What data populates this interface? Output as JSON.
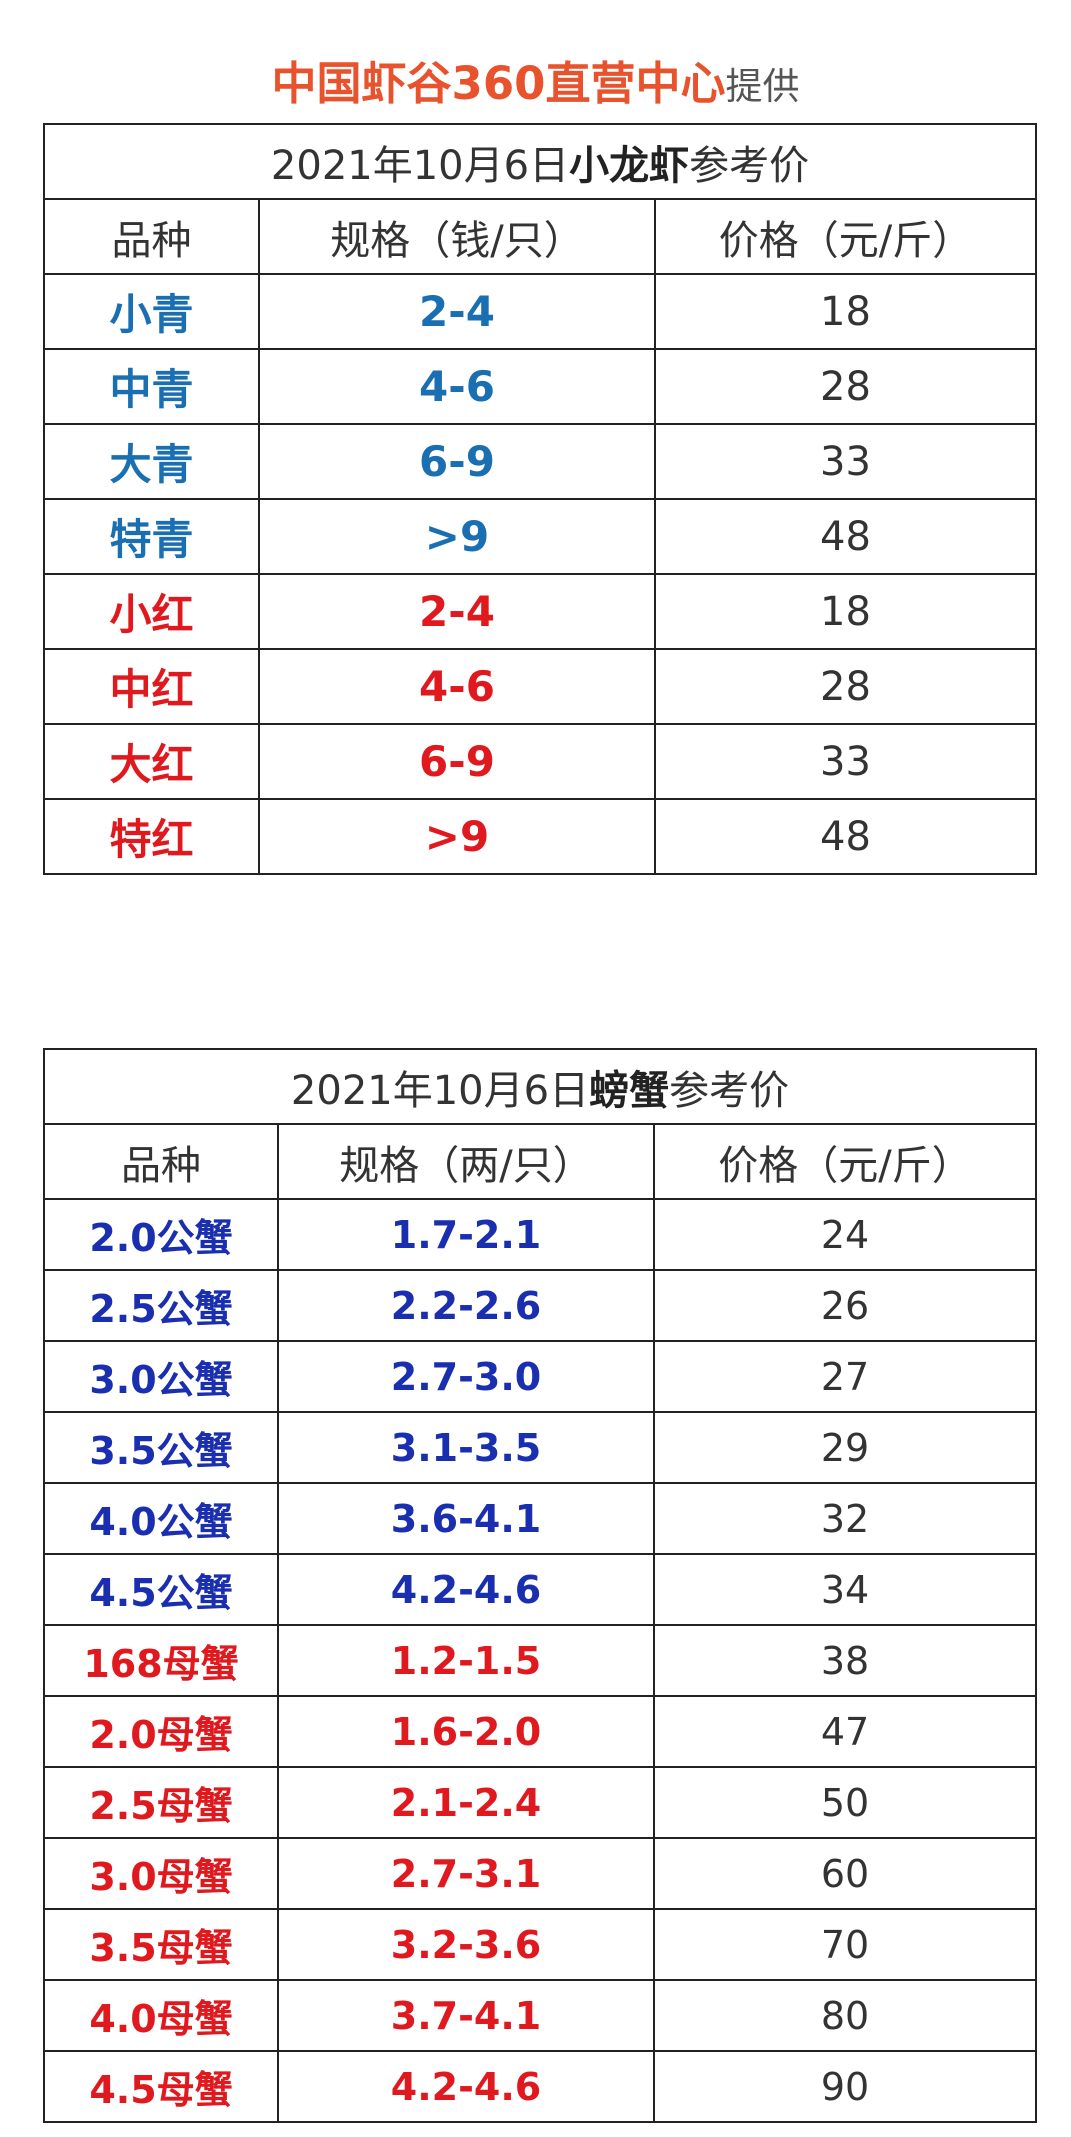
{
  "header": {
    "brand": "中国虾谷360直营中心",
    "provided": "提供"
  },
  "colors": {
    "brand_orange": "#e8522c",
    "crayfish_qing_blue": "#1a6fb3",
    "crab_male_blue": "#1a2eb0",
    "red": "#e0191f"
  },
  "crayfish_table": {
    "title_prefix": "2021年10月6日",
    "title_strong": "小龙虾",
    "title_suffix": "参考价",
    "headers": [
      "品种",
      "规格（钱/只）",
      "价格（元/斤）"
    ],
    "rows": [
      {
        "variety": "小青",
        "spec": "2-4",
        "price": "18",
        "color": "blue"
      },
      {
        "variety": "中青",
        "spec": "4-6",
        "price": "28",
        "color": "blue"
      },
      {
        "variety": "大青",
        "spec": "6-9",
        "price": "33",
        "color": "blue"
      },
      {
        "variety": "特青",
        "spec": ">9",
        "price": "48",
        "color": "blue"
      },
      {
        "variety": "小红",
        "spec": "2-4",
        "price": "18",
        "color": "red"
      },
      {
        "variety": "中红",
        "spec": "4-6",
        "price": "28",
        "color": "red"
      },
      {
        "variety": "大红",
        "spec": "6-9",
        "price": "33",
        "color": "red"
      },
      {
        "variety": "特红",
        "spec": ">9",
        "price": "48",
        "color": "red"
      }
    ]
  },
  "crab_table": {
    "title_prefix": "2021年10月6日",
    "title_strong": "螃蟹",
    "title_suffix": "参考价",
    "headers": [
      "品种",
      "规格（两/只）",
      "价格（元/斤）"
    ],
    "rows": [
      {
        "variety": "2.0公蟹",
        "spec": "1.7-2.1",
        "price": "24",
        "color": "navy"
      },
      {
        "variety": "2.5公蟹",
        "spec": "2.2-2.6",
        "price": "26",
        "color": "navy"
      },
      {
        "variety": "3.0公蟹",
        "spec": "2.7-3.0",
        "price": "27",
        "color": "navy"
      },
      {
        "variety": "3.5公蟹",
        "spec": "3.1-3.5",
        "price": "29",
        "color": "navy"
      },
      {
        "variety": "4.0公蟹",
        "spec": "3.6-4.1",
        "price": "32",
        "color": "navy"
      },
      {
        "variety": "4.5公蟹",
        "spec": "4.2-4.6",
        "price": "34",
        "color": "navy"
      },
      {
        "variety": "168母蟹",
        "spec": "1.2-1.5",
        "price": "38",
        "color": "red"
      },
      {
        "variety": "2.0母蟹",
        "spec": "1.6-2.0",
        "price": "47",
        "color": "red"
      },
      {
        "variety": "2.5母蟹",
        "spec": "2.1-2.4",
        "price": "50",
        "color": "red"
      },
      {
        "variety": "3.0母蟹",
        "spec": "2.7-3.1",
        "price": "60",
        "color": "red"
      },
      {
        "variety": "3.5母蟹",
        "spec": "3.2-3.6",
        "price": "70",
        "color": "red"
      },
      {
        "variety": "4.0母蟹",
        "spec": "3.7-4.1",
        "price": "80",
        "color": "red"
      },
      {
        "variety": "4.5母蟹",
        "spec": "4.2-4.6",
        "price": "90",
        "color": "red"
      }
    ]
  }
}
